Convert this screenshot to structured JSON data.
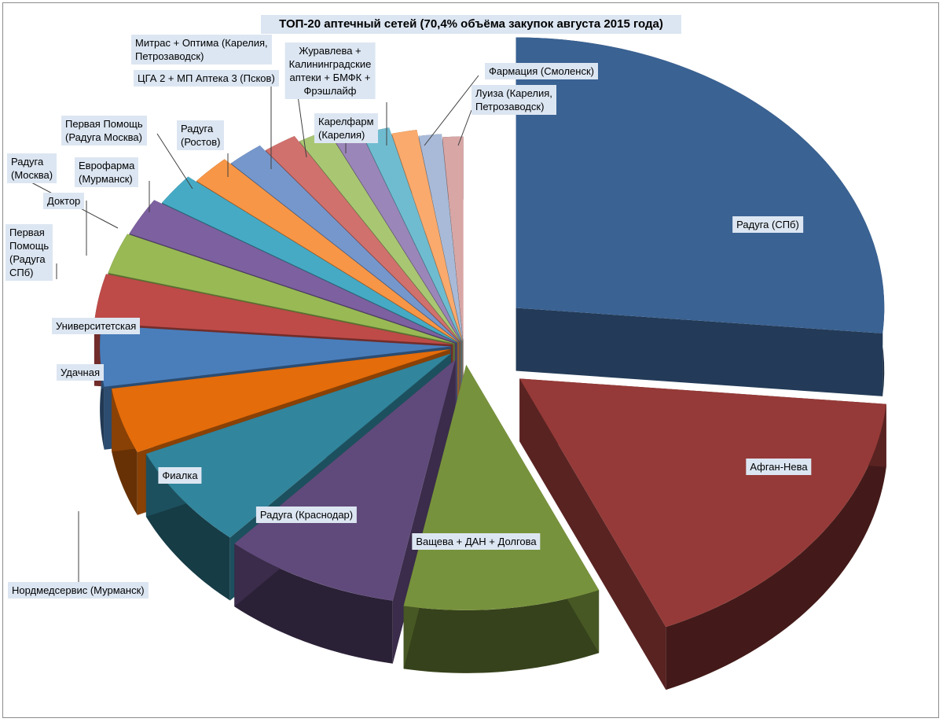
{
  "chart_data": {
    "type": "pie",
    "title": "ТОП-20 аптечный сетей (70,4% объёма закупок августа 2015 года)",
    "slices": [
      {
        "label": "Радуга (СПб)",
        "value": 26.5,
        "color": "#3a6293"
      },
      {
        "label": "Афган-Нева",
        "value": 17.0,
        "color": "#953a38"
      },
      {
        "label": "Ващева + ДАН + Долгова",
        "value": 9.5,
        "color": "#77923c"
      },
      {
        "label": "Радуга (Краснодар)",
        "value": 8.5,
        "color": "#604a7b"
      },
      {
        "label": "Фиалка",
        "value": 6.8,
        "color": "#31859c"
      },
      {
        "label": "Нордмедсервис (Мурманск)",
        "value": 4.2,
        "color": "#e46c0a"
      },
      {
        "label": "Удачная",
        "value": 3.8,
        "color": "#4a7ebb"
      },
      {
        "label": "Университетская",
        "value": 3.0,
        "color": "#be4b48"
      },
      {
        "label": "Первая\nПомощь\n(Радуга\nСПб)",
        "value": 2.5,
        "color": "#98b954"
      },
      {
        "label": "Доктор",
        "value": 2.3,
        "color": "#7d60a0"
      },
      {
        "label": "Радуга\n(Москва)",
        "value": 2.0,
        "color": "#46aac5"
      },
      {
        "label": "Еврофарма\n(Мурманск)",
        "value": 1.9,
        "color": "#f79646"
      },
      {
        "label": "Первая Помощь\n(Радуга Москва)",
        "value": 1.8,
        "color": "#7697cc"
      },
      {
        "label": "Радуга\n(Ростов)",
        "value": 1.7,
        "color": "#d0716d"
      },
      {
        "label": "ЦГА 2 + МП Аптека 3 (Псков)",
        "value": 1.6,
        "color": "#a9c673"
      },
      {
        "label": "Митрас + Оптима (Карелия,\nПетрозаводск)",
        "value": 1.5,
        "color": "#9b86b9"
      },
      {
        "label": "Карелфарм\n(Карелия)",
        "value": 1.5,
        "color": "#6fbcd0"
      },
      {
        "label": "Журавлева +\nКалининградские\nаптеки + БМФК +\nФрэшлайф",
        "value": 1.4,
        "color": "#f9aa6c"
      },
      {
        "label": "Фармация (Смоленск)",
        "value": 1.3,
        "color": "#a8bad8"
      },
      {
        "label": "Луиза (Карелия,\nПетрозаводск)",
        "value": 1.2,
        "color": "#d7a6a5"
      }
    ]
  }
}
